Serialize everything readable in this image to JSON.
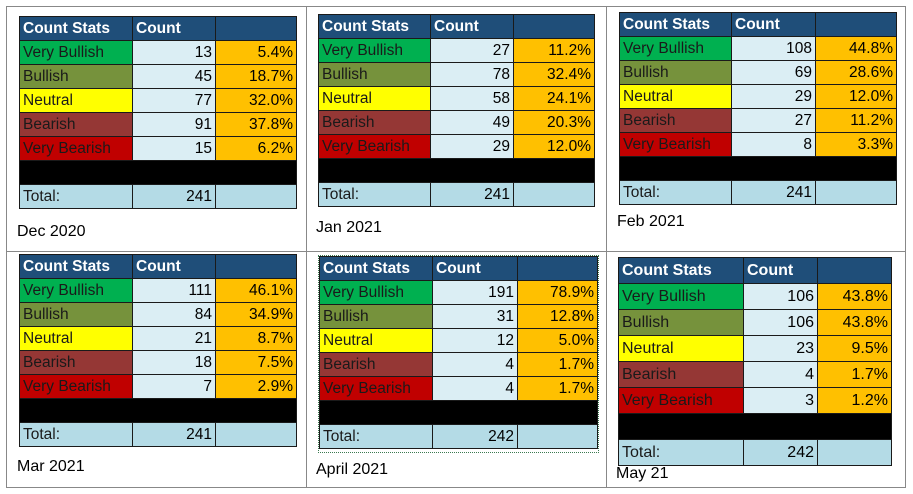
{
  "header": {
    "col_stats": "Count Stats",
    "col_count": "Count",
    "col_pct": ""
  },
  "labels": {
    "very_bullish": "Very Bullish",
    "bullish": "Bullish",
    "neutral": "Neutral",
    "bearish": "Bearish",
    "very_bearish": "Very Bearish",
    "total": "Total:"
  },
  "colors": {
    "very_bullish": "#00b050",
    "bullish": "#76923c",
    "neutral": "#ffff00",
    "bearish": "#953735",
    "very_bearish": "#c00000",
    "header": "#1f4e79",
    "count_cell": "#dbeef4",
    "pct_cell": "#ffc000"
  },
  "panels": [
    {
      "caption": "Dec 2020",
      "rows": [
        {
          "count": "13",
          "pct": "5.4%"
        },
        {
          "count": "45",
          "pct": "18.7%"
        },
        {
          "count": "77",
          "pct": "32.0%"
        },
        {
          "count": "91",
          "pct": "37.8%"
        },
        {
          "count": "15",
          "pct": "6.2%"
        }
      ],
      "total": "241"
    },
    {
      "caption": "Jan 2021",
      "rows": [
        {
          "count": "27",
          "pct": "11.2%"
        },
        {
          "count": "78",
          "pct": "32.4%"
        },
        {
          "count": "58",
          "pct": "24.1%"
        },
        {
          "count": "49",
          "pct": "20.3%"
        },
        {
          "count": "29",
          "pct": "12.0%"
        }
      ],
      "total": "241"
    },
    {
      "caption": "Feb 2021",
      "rows": [
        {
          "count": "108",
          "pct": "44.8%"
        },
        {
          "count": "69",
          "pct": "28.6%"
        },
        {
          "count": "29",
          "pct": "12.0%"
        },
        {
          "count": "27",
          "pct": "11.2%"
        },
        {
          "count": "8",
          "pct": "3.3%"
        }
      ],
      "total": "241"
    },
    {
      "caption": "Mar 2021",
      "rows": [
        {
          "count": "111",
          "pct": "46.1%"
        },
        {
          "count": "84",
          "pct": "34.9%"
        },
        {
          "count": "21",
          "pct": "8.7%"
        },
        {
          "count": "18",
          "pct": "7.5%"
        },
        {
          "count": "7",
          "pct": "2.9%"
        }
      ],
      "total": "241"
    },
    {
      "caption": "April 2021",
      "rows": [
        {
          "count": "191",
          "pct": "78.9%"
        },
        {
          "count": "31",
          "pct": "12.8%"
        },
        {
          "count": "12",
          "pct": "5.0%"
        },
        {
          "count": "4",
          "pct": "1.7%"
        },
        {
          "count": "4",
          "pct": "1.7%"
        }
      ],
      "total": "242"
    },
    {
      "caption": "May 21",
      "rows": [
        {
          "count": "106",
          "pct": "43.8%"
        },
        {
          "count": "106",
          "pct": "43.8%"
        },
        {
          "count": "23",
          "pct": "9.5%"
        },
        {
          "count": "4",
          "pct": "1.7%"
        },
        {
          "count": "3",
          "pct": "1.2%"
        }
      ],
      "total": "242"
    }
  ]
}
